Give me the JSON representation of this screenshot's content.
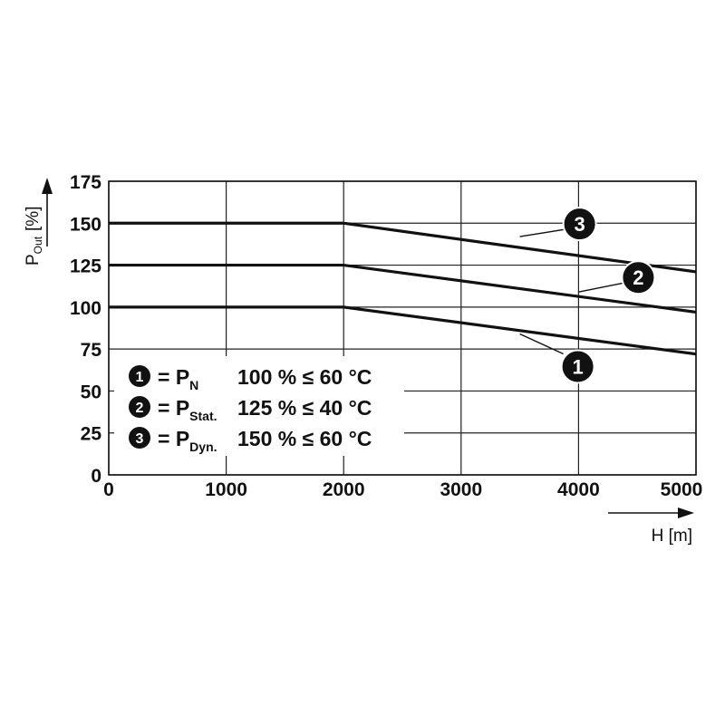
{
  "chart_data": {
    "type": "line",
    "title": "",
    "xlabel": "H [m]",
    "ylabel": {
      "main": "P",
      "sub": "Out",
      "unit": "[%]"
    },
    "xlim": [
      0,
      5000
    ],
    "ylim": [
      0,
      175
    ],
    "x_ticks": [
      "0",
      "1000",
      "2000",
      "3000",
      "4000",
      "5000"
    ],
    "y_ticks": [
      "0",
      "25",
      "50",
      "75",
      "100",
      "125",
      "150",
      "175"
    ],
    "grid": true,
    "series": [
      {
        "name": "1",
        "x": [
          0,
          2000,
          5000
        ],
        "values": [
          100,
          100,
          72
        ]
      },
      {
        "name": "2",
        "x": [
          0,
          2000,
          5000
        ],
        "values": [
          125,
          125,
          97
        ]
      },
      {
        "name": "3",
        "x": [
          0,
          2000,
          5000
        ],
        "values": [
          150,
          150,
          121
        ]
      }
    ],
    "legend": {
      "placement": "bottom-left",
      "entries": [
        {
          "badge": "1",
          "eq": "= P",
          "sub": "N",
          "rating": "100 % ≤ 60 °C"
        },
        {
          "badge": "2",
          "eq": "= P",
          "sub": "Stat.",
          "rating": "125 % ≤ 40 °C"
        },
        {
          "badge": "3",
          "eq": "= P",
          "sub": "Dyn.",
          "rating": "150 % ≤ 60 °C"
        }
      ]
    },
    "annotations": [
      {
        "label": "1",
        "series": "1",
        "x": 3500,
        "y": 84
      },
      {
        "label": "2",
        "series": "2",
        "x": 4000,
        "y": 109
      },
      {
        "label": "3",
        "series": "3",
        "x": 3500,
        "y": 142
      }
    ]
  }
}
